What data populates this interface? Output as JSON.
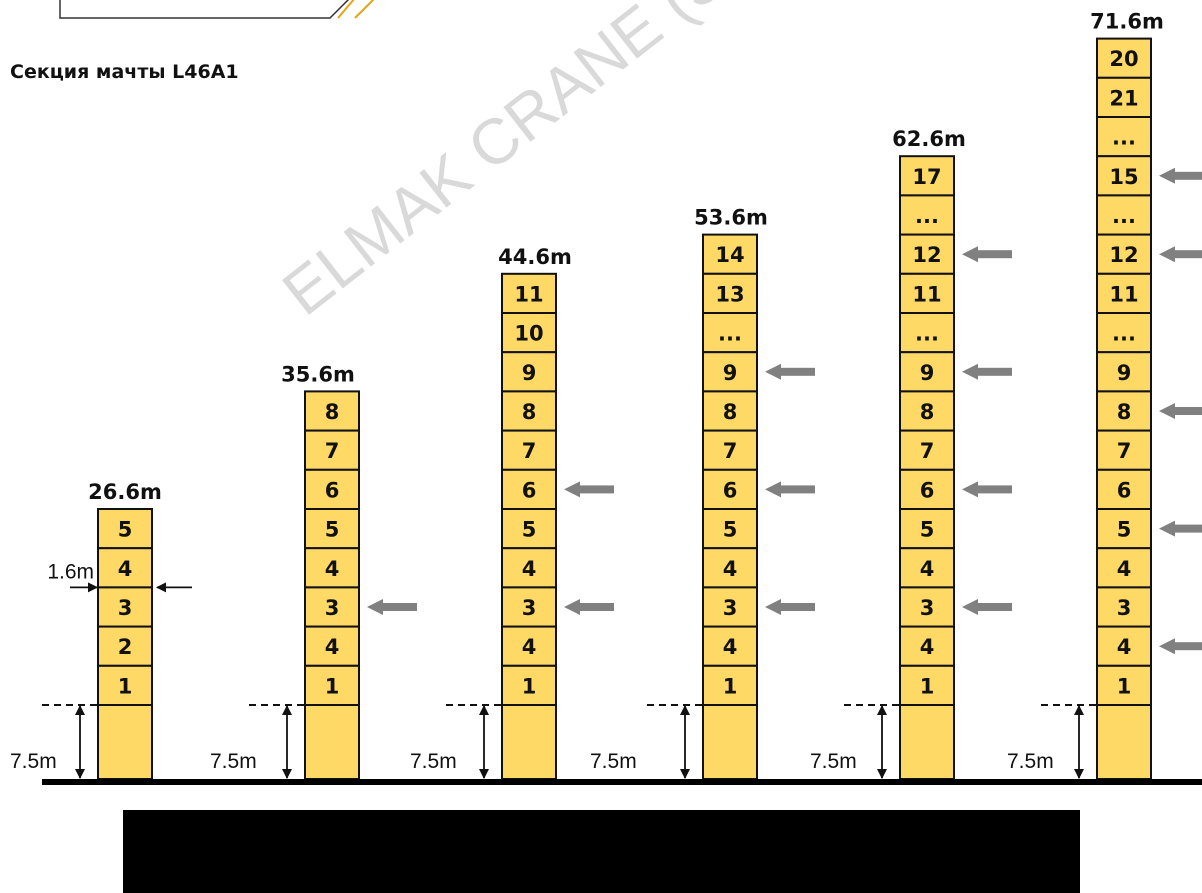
{
  "title": "Секция мачты  L46A1",
  "watermark": "ELMAK CRANE (SHAN",
  "colors": {
    "section_fill": "#FFD966",
    "outline": "#111111",
    "tie_arrow": "#808080",
    "ground": "#000000",
    "redaction": "#000000",
    "tab_accent": "#E8A317"
  },
  "base_height_label": "7.5m",
  "section_height_label": "1.6m",
  "masts": [
    {
      "height": "26.6m",
      "sections": [
        "5",
        "4",
        "3",
        "2",
        "1"
      ],
      "tie_rows": []
    },
    {
      "height": "35.6m",
      "sections": [
        "8",
        "7",
        "6",
        "5",
        "4",
        "3",
        "4",
        "1"
      ],
      "tie_rows": [
        5
      ]
    },
    {
      "height": "44.6m",
      "sections": [
        "11",
        "10",
        "9",
        "8",
        "7",
        "6",
        "5",
        "4",
        "3",
        "4",
        "1"
      ],
      "tie_rows": [
        5,
        8
      ]
    },
    {
      "height": "53.6m",
      "sections": [
        "14",
        "13",
        "...",
        "9",
        "8",
        "7",
        "6",
        "5",
        "4",
        "3",
        "4",
        "1"
      ],
      "tie_rows": [
        3,
        6,
        9
      ]
    },
    {
      "height": "62.6m",
      "sections": [
        "17",
        "...",
        "12",
        "11",
        "...",
        "9",
        "8",
        "7",
        "6",
        "5",
        "4",
        "3",
        "4",
        "1"
      ],
      "tie_rows": [
        2,
        5,
        8,
        11
      ]
    },
    {
      "height": "71.6m",
      "sections": [
        "20",
        "21",
        "...",
        "15",
        "...",
        "12",
        "11",
        "...",
        "9",
        "8",
        "7",
        "6",
        "5",
        "4",
        "3",
        "4",
        "1"
      ],
      "tie_rows": [
        3,
        5,
        9,
        12,
        15
      ]
    }
  ]
}
